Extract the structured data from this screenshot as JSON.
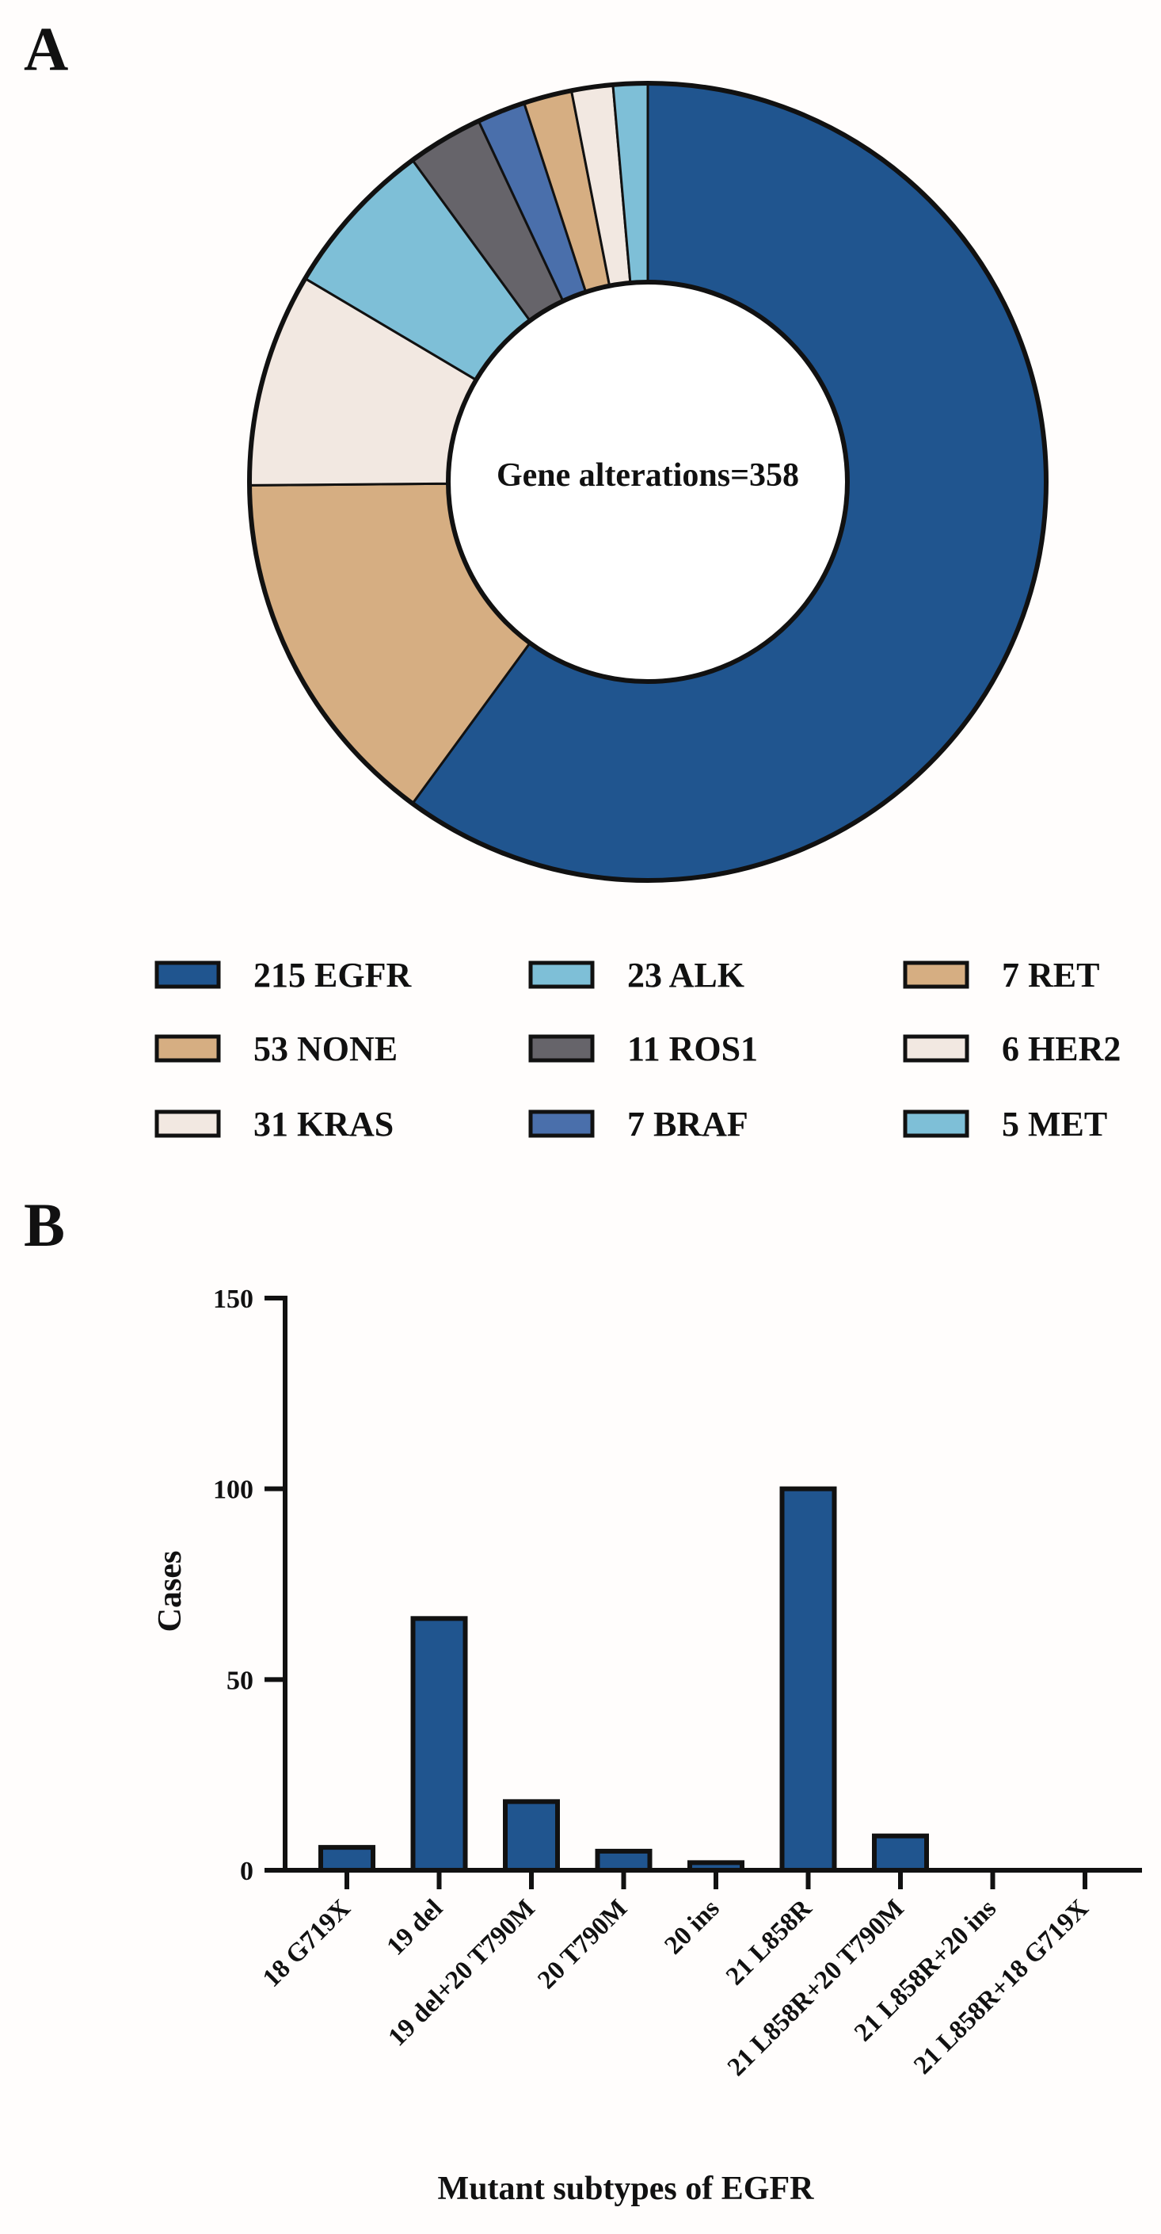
{
  "panel_a": {
    "label": "A"
  },
  "panel_b": {
    "label": "B"
  },
  "chart_data": [
    {
      "type": "pie",
      "variant": "donut",
      "center_label": "Gene alterations=358",
      "total": 358,
      "slices": [
        {
          "name": "EGFR",
          "value": 215,
          "legend": "215 EGFR",
          "color": "#20558f"
        },
        {
          "name": "NONE",
          "value": 53,
          "legend": "53 NONE",
          "color": "#d6ae82"
        },
        {
          "name": "KRAS",
          "value": 31,
          "legend": "31 KRAS",
          "color": "#f2e8e1"
        },
        {
          "name": "ALK",
          "value": 23,
          "legend": "23 ALK",
          "color": "#7ebfd7"
        },
        {
          "name": "ROS1",
          "value": 11,
          "legend": "11 ROS1",
          "color": "#66646a"
        },
        {
          "name": "BRAF",
          "value": 7,
          "legend": "7 BRAF",
          "color": "#4a6fab"
        },
        {
          "name": "RET",
          "value": 7,
          "legend": "7 RET",
          "color": "#d6ae82"
        },
        {
          "name": "HER2",
          "value": 6,
          "legend": "6 HER2",
          "color": "#f2e8e1"
        },
        {
          "name": "MET",
          "value": 5,
          "legend": "5 MET",
          "color": "#7ebfd7"
        }
      ],
      "direction": "counterclockwise from top, first slice clockwise",
      "legend_placement": "bottom"
    },
    {
      "type": "bar",
      "categories": [
        "18 G719X",
        "19 del",
        "19 del+20 T790M",
        "20 T790M",
        "20 ins",
        "21 L858R",
        "21 L858R+20 T790M",
        "21 L858R+20 ins",
        "21 L858R+18 G719X"
      ],
      "values": [
        6,
        66,
        18,
        5,
        2,
        100,
        9,
        0,
        0
      ],
      "ylim": [
        0,
        150
      ],
      "yticks": [
        "0",
        "50",
        "100",
        "150"
      ],
      "xlabel": "Mutant subtypes of EGFR",
      "ylabel": "Cases",
      "bar_color": "#20558f",
      "grid": false
    }
  ]
}
